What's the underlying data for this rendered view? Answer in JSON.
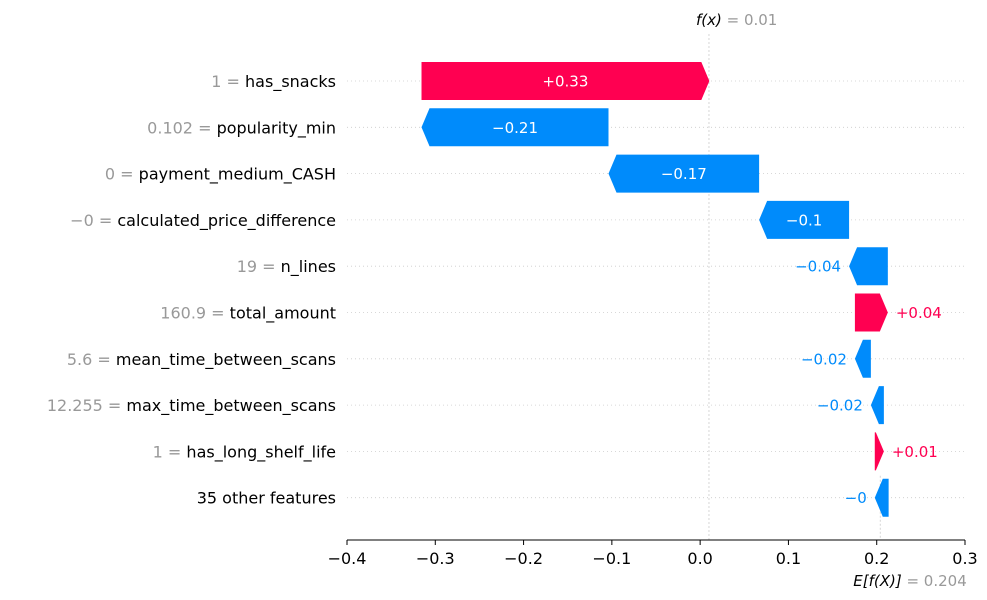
{
  "chart_data": {
    "type": "waterfall",
    "base_value": 0.204,
    "output_value": 0.01,
    "base_label": "E[f(X)]",
    "base_value_text": "= 0.204",
    "output_label": "f(x)",
    "output_value_text": "= 0.01",
    "xlim": [
      -0.4,
      0.3
    ],
    "xticks": [
      {
        "v": -0.4,
        "label": "−0.4"
      },
      {
        "v": -0.3,
        "label": "−0.3"
      },
      {
        "v": -0.2,
        "label": "−0.2"
      },
      {
        "v": -0.1,
        "label": "−0.1"
      },
      {
        "v": 0.0,
        "label": "0.0"
      },
      {
        "v": 0.1,
        "label": "0.1"
      },
      {
        "v": 0.2,
        "label": "0.2"
      },
      {
        "v": 0.3,
        "label": "0.3"
      }
    ],
    "features": [
      {
        "value_text": "1 =",
        "name": "has_snacks",
        "start": -0.3156,
        "end": 0.0104,
        "label": "+0.33"
      },
      {
        "value_text": "0.102 =",
        "name": "popularity_min",
        "start": -0.1038,
        "end": -0.3156,
        "label": "−0.21"
      },
      {
        "value_text": "0 =",
        "name": "payment_medium_CASH",
        "start": 0.0668,
        "end": -0.1038,
        "label": "−0.17"
      },
      {
        "value_text": "−0 =",
        "name": "calculated_price_difference",
        "start": 0.1687,
        "end": 0.0668,
        "label": "−0.1"
      },
      {
        "value_text": "19 =",
        "name": "n_lines",
        "start": 0.2126,
        "end": 0.1687,
        "label": "−0.04"
      },
      {
        "value_text": "160.9 =",
        "name": "total_amount",
        "start": 0.1753,
        "end": 0.2126,
        "label": "+0.04"
      },
      {
        "value_text": "5.6 =",
        "name": "mean_time_between_scans",
        "start": 0.1934,
        "end": 0.1753,
        "label": "−0.02"
      },
      {
        "value_text": "12.255 =",
        "name": "max_time_between_scans",
        "start": 0.2081,
        "end": 0.1934,
        "label": "−0.02"
      },
      {
        "value_text": "1 =",
        "name": "has_long_shelf_life",
        "start": 0.1978,
        "end": 0.2081,
        "label": "+0.01"
      },
      {
        "value_text": "",
        "name": "35 other features",
        "start": 0.2135,
        "end": 0.1978,
        "label": "−0"
      }
    ],
    "colors": {
      "positive": "#ff0051",
      "negative": "#008bfb",
      "axis": "#000000",
      "gridline": "#cccccc",
      "muted_text": "#999999"
    }
  }
}
